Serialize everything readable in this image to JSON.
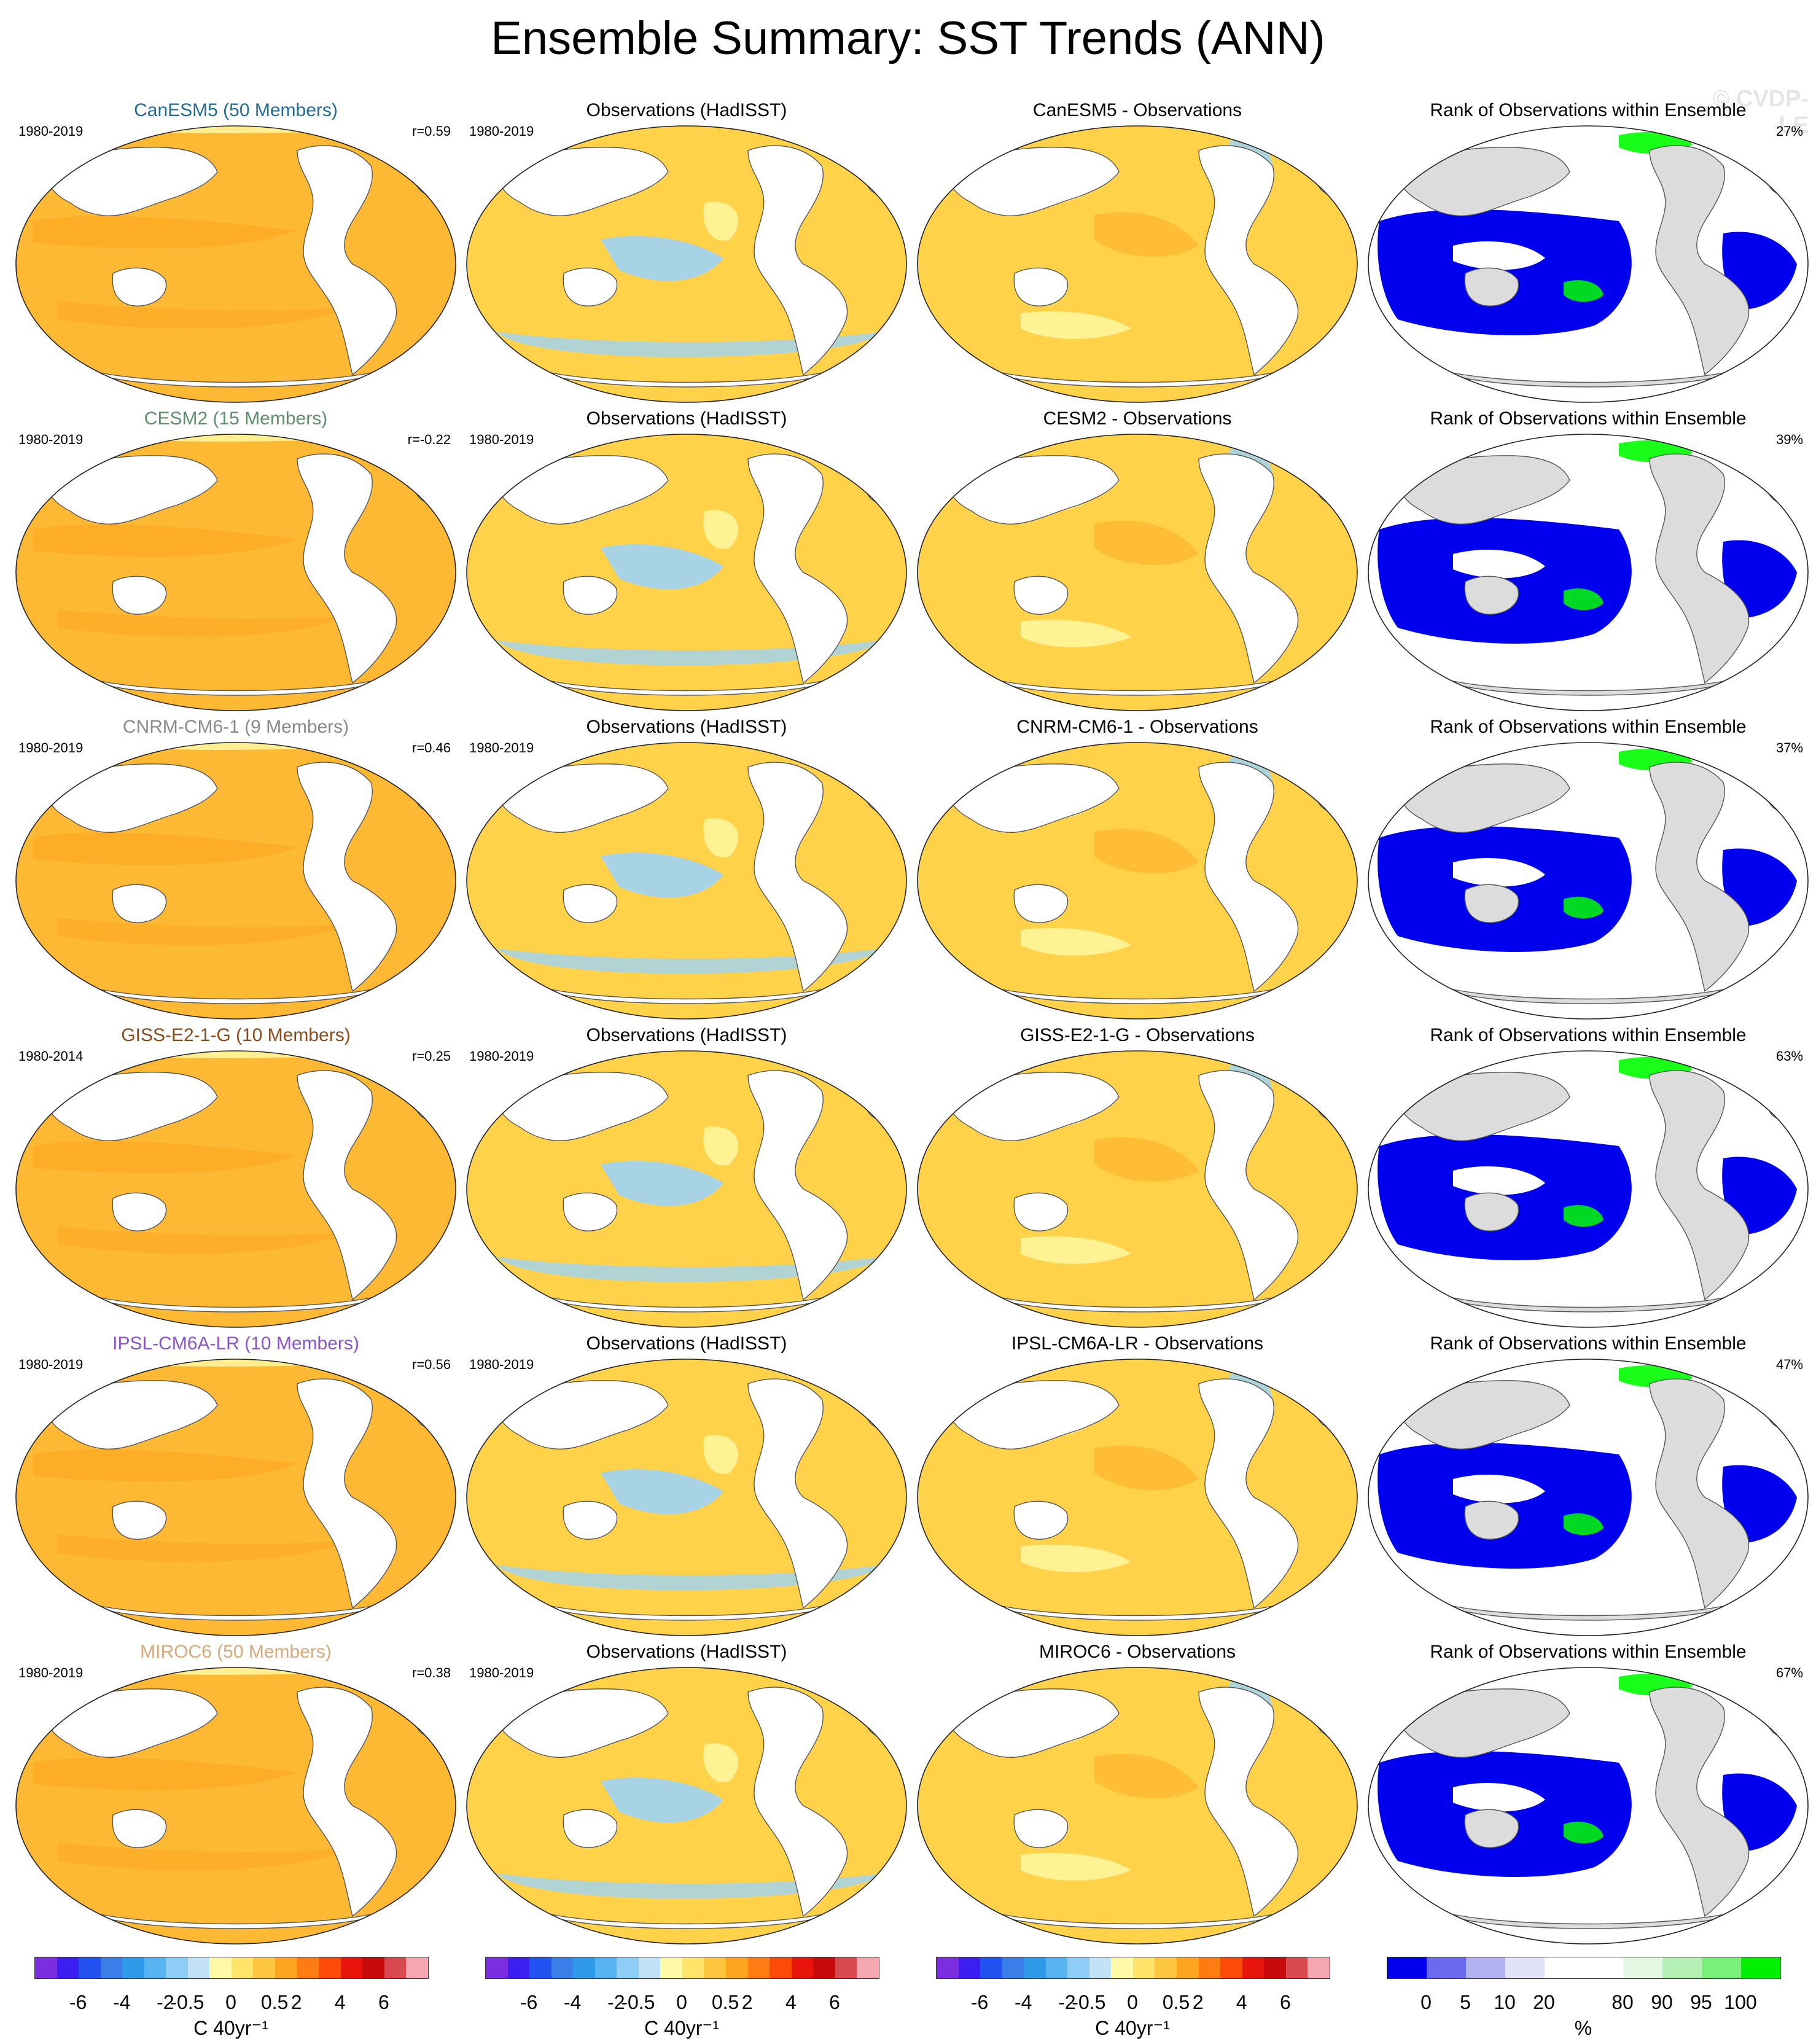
{
  "title": "Ensemble Summary: SST Trends (ANN)",
  "watermark": "© CVDP-LE",
  "colors": {
    "ocean_warm": "#fdb933",
    "ocean_warm_light": "#fff59a",
    "ocean_cool": "#9fd3f5",
    "land": "#ffffff",
    "land_rank": "#dcdcdc",
    "rank_low": "#0000ee",
    "rank_high": "#00ff00",
    "coast": "#555555"
  },
  "rows": [
    {
      "model": {
        "title": "CanESM5 (50 Members)",
        "title_color": "#1f6b9a",
        "period": "1980-2019",
        "r": "r=0.59"
      },
      "obs": {
        "title": "Observations (HadISST)",
        "period": "1980-2019"
      },
      "diff": {
        "title": "CanESM5 - Observations"
      },
      "rank": {
        "title": "Rank of Observations within Ensemble",
        "pct": "27%"
      }
    },
    {
      "model": {
        "title": "CESM2 (15 Members)",
        "title_color": "#5f8f6a",
        "period": "1980-2019",
        "r": "r=-0.22"
      },
      "obs": {
        "title": "Observations (HadISST)",
        "period": "1980-2019"
      },
      "diff": {
        "title": "CESM2 - Observations"
      },
      "rank": {
        "title": "Rank of Observations within Ensemble",
        "pct": "39%"
      }
    },
    {
      "model": {
        "title": "CNRM-CM6-1 (9 Members)",
        "title_color": "#8a8a8a",
        "period": "1980-2019",
        "r": "r=0.46"
      },
      "obs": {
        "title": "Observations (HadISST)",
        "period": "1980-2019"
      },
      "diff": {
        "title": "CNRM-CM6-1 - Observations"
      },
      "rank": {
        "title": "Rank of Observations within Ensemble",
        "pct": "37%"
      }
    },
    {
      "model": {
        "title": "GISS-E2-1-G (10 Members)",
        "title_color": "#8b4a1c",
        "period": "1980-2014",
        "r": "r=0.25"
      },
      "obs": {
        "title": "Observations (HadISST)",
        "period": "1980-2019"
      },
      "diff": {
        "title": "GISS-E2-1-G - Observations"
      },
      "rank": {
        "title": "Rank of Observations within Ensemble",
        "pct": "63%"
      }
    },
    {
      "model": {
        "title": "IPSL-CM6A-LR (10 Members)",
        "title_color": "#8a55c8",
        "period": "1980-2019",
        "r": "r=0.56"
      },
      "obs": {
        "title": "Observations (HadISST)",
        "period": "1980-2019"
      },
      "diff": {
        "title": "IPSL-CM6A-LR - Observations"
      },
      "rank": {
        "title": "Rank of Observations within Ensemble",
        "pct": "47%"
      }
    },
    {
      "model": {
        "title": "MIROC6 (50 Members)",
        "title_color": "#d9a87a",
        "period": "1980-2019",
        "r": "r=0.38"
      },
      "obs": {
        "title": "Observations (HadISST)",
        "period": "1980-2019"
      },
      "diff": {
        "title": "MIROC6 - Observations"
      },
      "rank": {
        "title": "Rank of Observations within Ensemble",
        "pct": "67%"
      }
    }
  ],
  "colorbars": {
    "trend": {
      "unit": "C 40yr⁻¹",
      "ticks": [
        "-6",
        "-4",
        "-2",
        "-0.5",
        "0",
        "0.5",
        "2",
        "4",
        "6"
      ],
      "colors": [
        "#7a2ee0",
        "#3c1ef0",
        "#2452f0",
        "#3a7ee8",
        "#2f9be8",
        "#57b4f0",
        "#8ecdf5",
        "#c2e3f5",
        "#fff9a8",
        "#ffe36a",
        "#ffc640",
        "#ffa41e",
        "#ff7c12",
        "#ff4a0a",
        "#e8160a",
        "#c80a0a",
        "#d84a50",
        "#f6a8b0"
      ]
    },
    "rank": {
      "unit": "%",
      "ticks": [
        "0",
        "5",
        "10",
        "20",
        "80",
        "90",
        "95",
        "100"
      ],
      "colors": [
        "#0000ee",
        "#6b6bf0",
        "#b2b2f0",
        "#e1e1f8",
        "#ffffff",
        "#ffffff",
        "#e2f8e2",
        "#b4f0b4",
        "#7af07a",
        "#00ee00"
      ]
    }
  }
}
